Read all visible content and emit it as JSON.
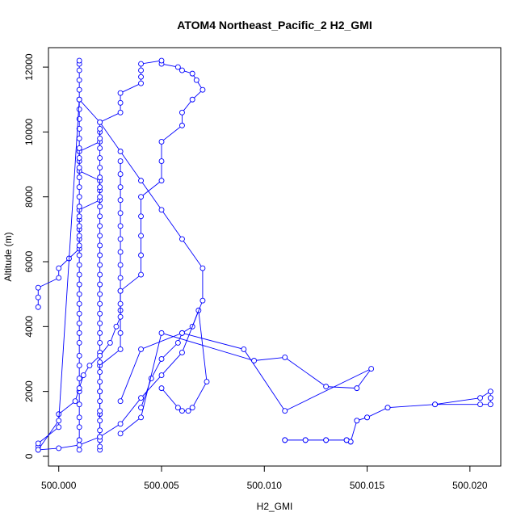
{
  "chart_data": {
    "type": "line",
    "title": "ATOM4 Northeast_Pacific_2 H2_GMI",
    "xlabel": "H2_GMI",
    "ylabel": "Altitude (m)",
    "xlim": [
      499.9995,
      500.0215
    ],
    "ylim": [
      -300,
      12600
    ],
    "x_ticks": [
      500.0,
      500.005,
      500.01,
      500.015,
      500.02
    ],
    "x_tick_labels": [
      "500.000",
      "500.005",
      "500.010",
      "500.015",
      "500.020"
    ],
    "y_ticks": [
      0,
      2000,
      4000,
      6000,
      8000,
      10000,
      12000
    ],
    "y_tick_labels": [
      "0",
      "2000",
      "4000",
      "6000",
      "8000",
      "10000",
      "12000"
    ],
    "grid": false,
    "series_color": "#0000ff",
    "series": [
      {
        "x": [
          500.002,
          500.002,
          500.002,
          500.002,
          500.003,
          500.003,
          500.003,
          500.003,
          500.004,
          500.004,
          500.004,
          500.004,
          500.004,
          500.005,
          500.005,
          500.005,
          500.006,
          500.006,
          500.0065,
          500.007,
          500.0067,
          500.0065,
          500.006,
          500.0058,
          500.005,
          500.005,
          500.004,
          500.004,
          500.004,
          500.004,
          500.003,
          500.003,
          500.003,
          500.002,
          500.002,
          500.002,
          500.001,
          500.001,
          500.001,
          500.002,
          500.002,
          500.002,
          500.001,
          500.001,
          500.001,
          500.001,
          500.001,
          500.0005,
          500.0,
          500.0,
          499.999,
          499.999,
          499.999
        ],
        "y": [
          600,
          1300,
          2000,
          2800,
          3300,
          3800,
          4500,
          5100,
          5600,
          6200,
          6800,
          7400,
          8000,
          8500,
          9100,
          9700,
          10200,
          10600,
          11000,
          11300,
          11600,
          11800,
          11900,
          12000,
          12100,
          12200,
          12100,
          11900,
          11700,
          11500,
          11200,
          10900,
          10600,
          10300,
          10000,
          9700,
          9400,
          9100,
          8800,
          8500,
          8200,
          7900,
          7600,
          7300,
          7000,
          6700,
          6400,
          6100,
          5800,
          5500,
          5200,
          4900,
          4600
        ]
      },
      {
        "x": [
          500.001,
          500.001,
          500.001,
          500.001,
          500.001,
          500.001,
          500.001,
          500.001,
          500.001,
          500.001,
          500.001,
          500.001,
          500.001,
          500.001,
          500.001,
          500.001,
          500.001,
          500.001,
          500.001,
          500.001,
          500.001,
          500.001,
          500.001,
          500.001,
          500.001,
          500.001,
          500.001,
          500.001,
          500.001,
          500.001,
          500.001,
          500.001,
          500.001,
          500.001,
          500.001,
          500.001,
          500.001,
          500.001,
          500.001,
          500.001
        ],
        "y": [
          200,
          500,
          900,
          1200,
          1600,
          2000,
          2400,
          2800,
          3100,
          3500,
          3800,
          4100,
          4400,
          4700,
          5000,
          5300,
          5600,
          5900,
          6200,
          6500,
          6800,
          7100,
          7400,
          7700,
          8000,
          8300,
          8600,
          8900,
          9200,
          9500,
          9800,
          10100,
          10400,
          10700,
          11000,
          11300,
          11600,
          11900,
          12100,
          12200
        ]
      },
      {
        "x": [
          500.002,
          500.002,
          500.002,
          500.002,
          500.002,
          500.002,
          500.002,
          500.002,
          500.002,
          500.002,
          500.002,
          500.002,
          500.002,
          500.002,
          500.002,
          500.002,
          500.002,
          500.002,
          500.002,
          500.002,
          500.002,
          500.002,
          500.002,
          500.002,
          500.002,
          500.002,
          500.002,
          500.002,
          500.002,
          500.002,
          500.002,
          500.002,
          500.002,
          500.002,
          500.002
        ],
        "y": [
          200,
          300,
          500,
          800,
          1100,
          1400,
          1700,
          2000,
          2300,
          2600,
          2900,
          3200,
          3500,
          3800,
          4100,
          4400,
          4700,
          5000,
          5300,
          5600,
          5900,
          6200,
          6500,
          6800,
          7100,
          7400,
          7700,
          8000,
          8300,
          8600,
          8900,
          9200,
          9500,
          9800,
          10100
        ]
      },
      {
        "x": [
          499.999,
          499.999,
          500.0,
          500.0,
          500.0008,
          500.001,
          500.0012,
          500.0015,
          500.002,
          500.0025,
          500.0028,
          500.003,
          500.003,
          500.003,
          500.003,
          500.003,
          500.003,
          500.003,
          500.003,
          500.003,
          500.003,
          500.003,
          500.003,
          500.003
        ],
        "y": [
          300,
          400,
          900,
          1300,
          1700,
          2100,
          2500,
          2800,
          3100,
          3500,
          4000,
          4300,
          4700,
          5100,
          5500,
          5900,
          6300,
          6700,
          7100,
          7500,
          7900,
          8300,
          8700,
          9100
        ]
      },
      {
        "x": [
          500.011,
          500.012,
          500.013,
          500.014,
          500.0142,
          500.0145,
          500.015,
          500.016,
          500.0183,
          500.0205,
          500.021,
          500.021,
          500.021,
          500.0205,
          500.0183,
          500.016,
          500.015,
          500.0145,
          500.0142,
          500.014,
          500.013,
          500.012,
          500.011
        ],
        "y": [
          500,
          500,
          500,
          500,
          450,
          1100,
          1200,
          1500,
          1600,
          1600,
          1600,
          1800,
          2000,
          1800,
          1600,
          1500,
          1200,
          1100,
          450,
          500,
          500,
          500,
          500
        ]
      },
      {
        "x": [
          500.004,
          500.0045,
          500.005,
          500.0058,
          500.006,
          500.0065,
          500.0068,
          500.0072,
          500.0065,
          500.0063,
          500.006,
          500.0058,
          500.005
        ],
        "y": [
          1500,
          2400,
          3000,
          3500,
          3800,
          4000,
          4500,
          2300,
          1500,
          1400,
          1400,
          1500,
          2100
        ]
      },
      {
        "x": [
          500.003,
          500.004,
          500.005,
          500.0095,
          500.011,
          500.013,
          500.0145,
          500.0152,
          500.011,
          500.009,
          500.006,
          500.004,
          500.003
        ],
        "y": [
          700,
          1200,
          3800,
          2950,
          3050,
          2150,
          2100,
          2700,
          1400,
          3300,
          3800,
          3300,
          1700
        ]
      },
      {
        "x": [
          499.999,
          500.0,
          500.001,
          500.002,
          500.003,
          500.004,
          500.005,
          500.006,
          500.007,
          500.007,
          500.006,
          500.005,
          500.004,
          500.003,
          500.002,
          500.001,
          500.0,
          499.999
        ],
        "y": [
          200,
          250,
          350,
          600,
          1000,
          1800,
          2500,
          3200,
          4800,
          5800,
          6700,
          7600,
          8500,
          9400,
          10300,
          11000,
          1100,
          200
        ]
      }
    ]
  }
}
